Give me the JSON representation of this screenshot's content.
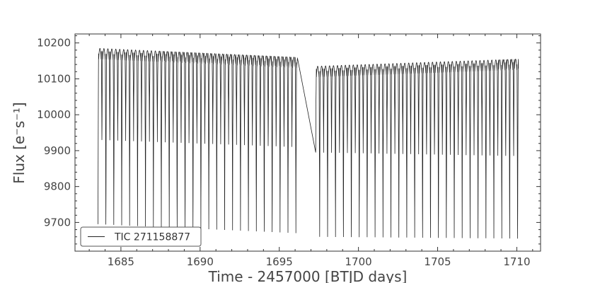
{
  "chart_data": {
    "type": "line",
    "title": "",
    "xlabel": "Time - 2457000 [BTJD days]",
    "ylabel": "Flux [e⁻s⁻¹]",
    "xlim": [
      1682.1,
      1711.5
    ],
    "ylim": [
      9620,
      10225
    ],
    "xticks": [
      1685,
      1690,
      1695,
      1700,
      1705,
      1710
    ],
    "yticks": [
      9700,
      9800,
      9900,
      10000,
      10100,
      10200
    ],
    "grid": false,
    "legend": "lower-left",
    "series": [
      {
        "name": "TIC 271158877",
        "color": "#222222",
        "segments": [
          {
            "t_start": 1683.55,
            "t_end": 1696.15,
            "phase_start": 0.0,
            "period": 0.5,
            "max": 10185,
            "max_end": 10160,
            "min": 9695,
            "min_end": 9670,
            "alt_min": 9930,
            "alt_min_end": 9910
          },
          {
            "t_start": 1697.3,
            "t_end": 1710.1,
            "phase_start": 0.5,
            "period": 0.5,
            "max": 10135,
            "max_end": 10155,
            "min": 9660,
            "min_end": 9655,
            "alt_min": 9895,
            "alt_min_end": 9885
          }
        ],
        "notes": "Eclipsing-binary-like light curve: alternating deep and shallow minima with a data gap near 1696.2-1697.3."
      }
    ]
  }
}
